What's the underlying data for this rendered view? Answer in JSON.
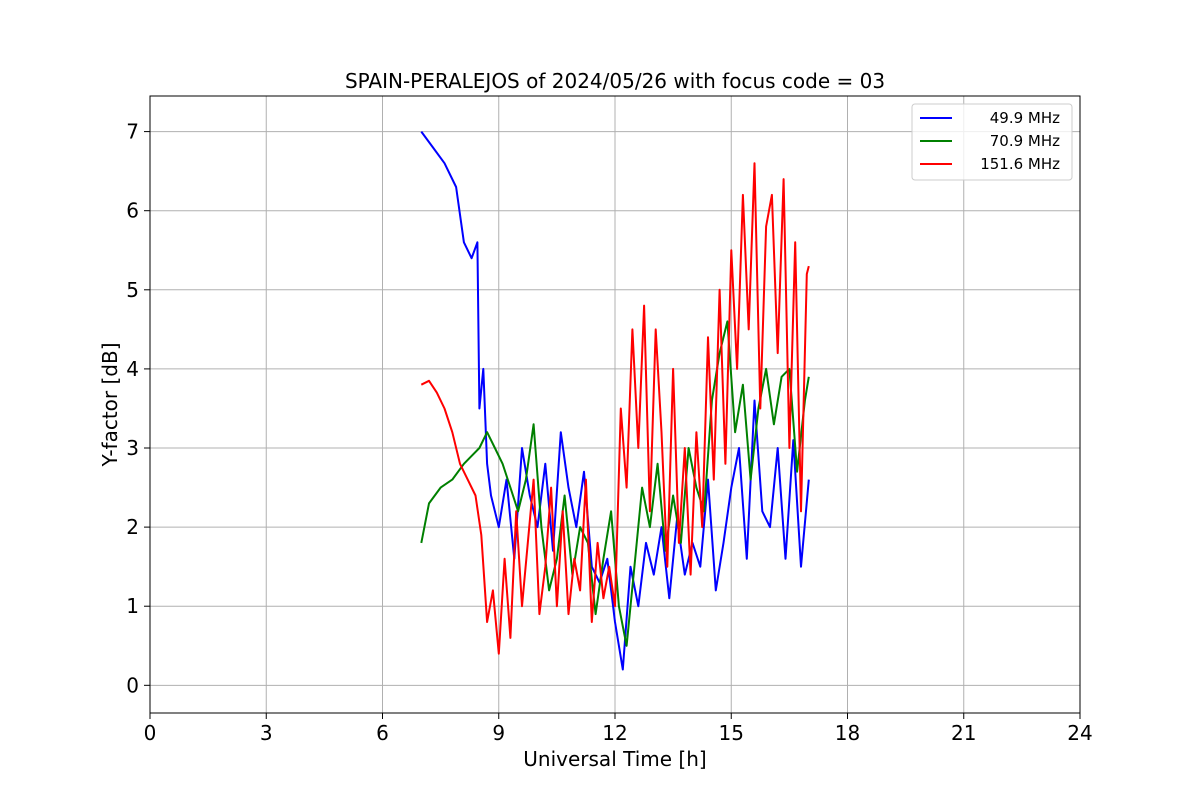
{
  "chart_data": {
    "type": "line",
    "title": "SPAIN-PERALEJOS of 2024/05/26 with focus code = 03",
    "xlabel": "Universal Time [h]",
    "ylabel": "Y-factor [dB]",
    "xlim": [
      0,
      24
    ],
    "ylim": [
      -0.35,
      7.45
    ],
    "xticks": [
      0,
      3,
      6,
      9,
      12,
      15,
      18,
      21,
      24
    ],
    "xtick_labels": [
      "0",
      "3",
      "6",
      "9",
      "12",
      "15",
      "18",
      "21",
      "24"
    ],
    "yticks": [
      0,
      1,
      2,
      3,
      4,
      5,
      6,
      7
    ],
    "ytick_labels": [
      "0",
      "1",
      "2",
      "3",
      "4",
      "5",
      "6",
      "7"
    ],
    "grid": true,
    "legend_position": "top-right",
    "series": [
      {
        "name": "49.9 MHz",
        "color": "#0000ff",
        "x": [
          7.0,
          7.3,
          7.6,
          7.9,
          8.1,
          8.3,
          8.45,
          8.5,
          8.6,
          8.7,
          8.8,
          9.0,
          9.2,
          9.4,
          9.6,
          9.8,
          10.0,
          10.2,
          10.4,
          10.6,
          10.8,
          11.0,
          11.2,
          11.4,
          11.6,
          11.8,
          12.0,
          12.2,
          12.4,
          12.6,
          12.8,
          13.0,
          13.2,
          13.4,
          13.6,
          13.8,
          14.0,
          14.2,
          14.4,
          14.6,
          14.8,
          15.0,
          15.2,
          15.4,
          15.6,
          15.8,
          16.0,
          16.2,
          16.4,
          16.6,
          16.8,
          17.0
        ],
        "y": [
          7.0,
          6.8,
          6.6,
          6.3,
          5.6,
          5.4,
          5.6,
          3.5,
          4.0,
          2.8,
          2.4,
          2.0,
          2.6,
          1.6,
          3.0,
          2.4,
          2.0,
          2.8,
          1.7,
          3.2,
          2.5,
          2.0,
          2.7,
          1.5,
          1.3,
          1.6,
          0.8,
          0.2,
          1.5,
          1.0,
          1.8,
          1.4,
          2.0,
          1.1,
          2.1,
          1.4,
          1.8,
          1.5,
          2.6,
          1.2,
          1.8,
          2.5,
          3.0,
          1.6,
          3.6,
          2.2,
          2.0,
          3.0,
          1.6,
          3.1,
          1.5,
          2.6
        ]
      },
      {
        "name": "70.9 MHz",
        "color": "#008000",
        "x": [
          7.0,
          7.2,
          7.5,
          7.8,
          8.1,
          8.3,
          8.5,
          8.7,
          8.9,
          9.1,
          9.3,
          9.5,
          9.7,
          9.9,
          10.1,
          10.3,
          10.5,
          10.7,
          10.9,
          11.1,
          11.3,
          11.5,
          11.7,
          11.9,
          12.1,
          12.3,
          12.5,
          12.7,
          12.9,
          13.1,
          13.3,
          13.5,
          13.7,
          13.9,
          14.1,
          14.3,
          14.5,
          14.7,
          14.9,
          15.1,
          15.3,
          15.5,
          15.7,
          15.9,
          16.1,
          16.3,
          16.5,
          16.7,
          16.9,
          17.0
        ],
        "y": [
          1.8,
          2.3,
          2.5,
          2.6,
          2.8,
          2.9,
          3.0,
          3.2,
          3.0,
          2.8,
          2.5,
          2.2,
          2.6,
          3.3,
          2.0,
          1.2,
          1.6,
          2.4,
          1.4,
          2.0,
          1.8,
          0.9,
          1.6,
          2.2,
          1.0,
          0.5,
          1.5,
          2.5,
          2.0,
          2.8,
          1.7,
          2.4,
          1.8,
          3.0,
          2.5,
          2.2,
          3.6,
          4.2,
          4.6,
          3.2,
          3.8,
          2.6,
          3.5,
          4.0,
          3.3,
          3.9,
          4.0,
          2.7,
          3.6,
          3.9
        ]
      },
      {
        "name": "151.6 MHz",
        "color": "#ff0000",
        "x": [
          7.0,
          7.2,
          7.4,
          7.6,
          7.8,
          8.0,
          8.2,
          8.4,
          8.55,
          8.7,
          8.85,
          9.0,
          9.15,
          9.3,
          9.45,
          9.6,
          9.75,
          9.9,
          10.05,
          10.2,
          10.35,
          10.5,
          10.65,
          10.8,
          10.95,
          11.1,
          11.25,
          11.4,
          11.55,
          11.7,
          11.85,
          12.0,
          12.15,
          12.3,
          12.45,
          12.6,
          12.75,
          12.9,
          13.05,
          13.2,
          13.35,
          13.5,
          13.65,
          13.8,
          13.95,
          14.1,
          14.25,
          14.4,
          14.55,
          14.7,
          14.85,
          15.0,
          15.15,
          15.3,
          15.45,
          15.6,
          15.75,
          15.9,
          16.05,
          16.2,
          16.35,
          16.5,
          16.65,
          16.8,
          16.95,
          17.0
        ],
        "y": [
          3.8,
          3.85,
          3.7,
          3.5,
          3.2,
          2.8,
          2.6,
          2.4,
          1.9,
          0.8,
          1.2,
          0.4,
          1.6,
          0.6,
          2.2,
          1.0,
          1.8,
          2.6,
          0.9,
          1.5,
          2.5,
          1.0,
          2.2,
          0.9,
          1.6,
          1.2,
          2.6,
          0.8,
          1.8,
          1.1,
          1.5,
          1.0,
          3.5,
          2.5,
          4.5,
          3.0,
          4.8,
          2.2,
          4.5,
          3.2,
          1.5,
          4.0,
          1.8,
          3.0,
          1.4,
          3.2,
          2.0,
          4.4,
          2.6,
          5.0,
          2.8,
          5.5,
          4.0,
          6.2,
          4.5,
          6.6,
          3.5,
          5.8,
          6.2,
          4.2,
          6.4,
          3.0,
          5.6,
          2.2,
          5.2,
          5.3
        ]
      }
    ]
  }
}
